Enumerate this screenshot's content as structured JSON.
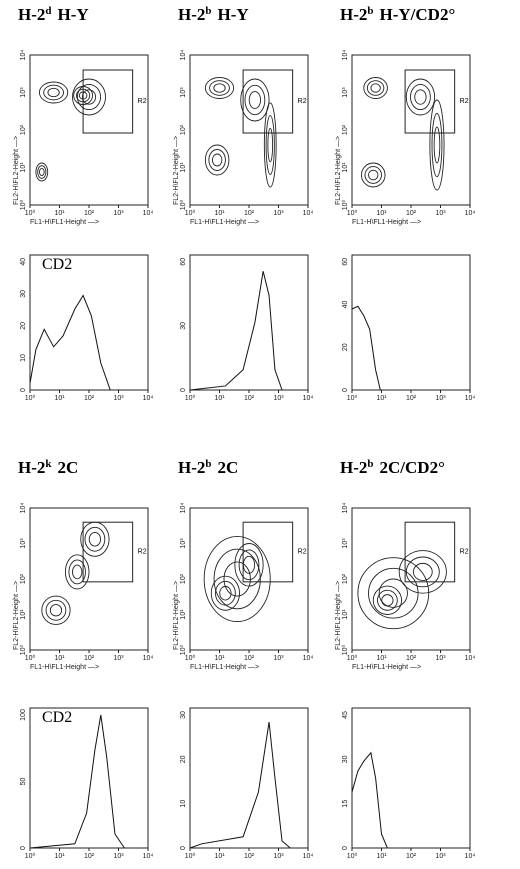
{
  "panels": [
    {
      "kind": "contour",
      "title": {
        "base": "H-2",
        "sup": "d",
        "rest": "H-Y"
      },
      "xticks": [
        "10⁰",
        "10¹",
        "10²",
        "10³",
        "10⁴"
      ],
      "yticks": [
        "10⁰",
        "10¹",
        "10²",
        "10³",
        "10⁴"
      ],
      "xlabel": "FL1-H\\FL1-Height —>",
      "ylabel": "FL2-H\\FL2-Height —>",
      "gate": "R2"
    },
    {
      "kind": "contour",
      "title": {
        "base": "H-2",
        "sup": "b",
        "rest": "H-Y"
      },
      "xticks": [
        "10⁰",
        "10¹",
        "10²",
        "10³",
        "10⁴"
      ],
      "yticks": [
        "10⁰",
        "10¹",
        "10²",
        "10³",
        "10⁴"
      ],
      "xlabel": "FL1-H\\FL1-Height —>",
      "ylabel": "FL2-H\\FL2-Height —>",
      "gate": "R2"
    },
    {
      "kind": "contour",
      "title": {
        "base": "H-2",
        "sup": "b",
        "rest": "H-Y/CD2°"
      },
      "xticks": [
        "10⁰",
        "10¹",
        "10²",
        "10³",
        "10⁴"
      ],
      "yticks": [
        "10⁰",
        "10¹",
        "10²",
        "10³",
        "10⁴"
      ],
      "xlabel": "FL1-H\\FL1-Height —>",
      "ylabel": "FL2-H\\FL2-Height —>",
      "gate": "R2"
    },
    {
      "kind": "hist",
      "label": "CD2",
      "xticks": [
        "10⁰",
        "10¹",
        "10²",
        "10³",
        "10⁴"
      ],
      "yticks": [
        "0",
        "10",
        "20",
        "30",
        "40"
      ]
    },
    {
      "kind": "hist",
      "xticks": [
        "10⁰",
        "10¹",
        "10²",
        "10³",
        "10⁴"
      ],
      "yticks": [
        "0",
        "30",
        "60"
      ]
    },
    {
      "kind": "hist",
      "xticks": [
        "10⁰",
        "10¹",
        "10²",
        "10³",
        "10⁴"
      ],
      "yticks": [
        "0",
        "20",
        "40",
        "60"
      ]
    },
    {
      "kind": "contour",
      "title": {
        "base": "H-2",
        "sup": "k",
        "rest": "2C"
      },
      "xticks": [
        "10⁰",
        "10¹",
        "10²",
        "10³",
        "10⁴"
      ],
      "yticks": [
        "10⁰",
        "10¹",
        "10²",
        "10³",
        "10⁴"
      ],
      "xlabel": "FL1-H\\FL1-Height —>",
      "ylabel": "FL2-H\\FL2-Height —>",
      "gate": "R2"
    },
    {
      "kind": "contour",
      "title": {
        "base": "H-2",
        "sup": "b",
        "rest": "2C"
      },
      "xticks": [
        "10⁰",
        "10¹",
        "10²",
        "10³",
        "10⁴"
      ],
      "yticks": [
        "10⁰",
        "10¹",
        "10²",
        "10³",
        "10⁴"
      ],
      "xlabel": "FL1-H\\FL1-Height —>",
      "ylabel": "FL2-H\\FL2-Height —>",
      "gate": "R2"
    },
    {
      "kind": "contour",
      "title": {
        "base": "H-2",
        "sup": "b",
        "rest": "2C/CD2°"
      },
      "xticks": [
        "10⁰",
        "10¹",
        "10²",
        "10³",
        "10⁴"
      ],
      "yticks": [
        "10⁰",
        "10¹",
        "10²",
        "10³",
        "10⁴"
      ],
      "xlabel": "FL1-H\\FL1-Height —>",
      "ylabel": "FL2-H\\FL2-Height —>",
      "gate": "R2"
    },
    {
      "kind": "hist",
      "label": "CD2",
      "xticks": [
        "10⁰",
        "10¹",
        "10²",
        "10³",
        "10⁴"
      ],
      "yticks": [
        "0",
        "50",
        "100"
      ]
    },
    {
      "kind": "hist",
      "xticks": [
        "10⁰",
        "10¹",
        "10²",
        "10³",
        "10⁴"
      ],
      "yticks": [
        "0",
        "10",
        "20",
        "30"
      ]
    },
    {
      "kind": "hist",
      "xticks": [
        "10⁰",
        "10¹",
        "10²",
        "10³",
        "10⁴"
      ],
      "yticks": [
        "0",
        "15",
        "30",
        "45"
      ]
    }
  ]
}
